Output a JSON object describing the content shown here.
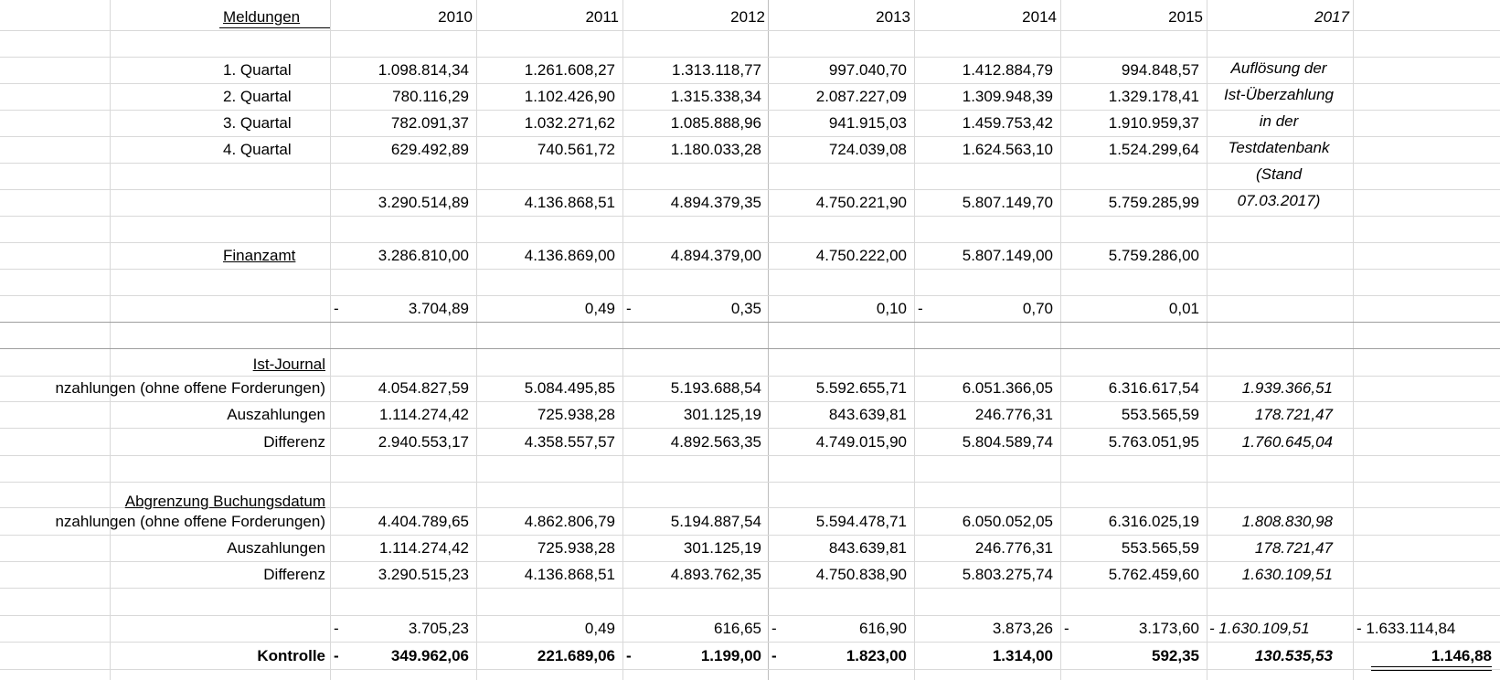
{
  "header": {
    "label": "Meldungen",
    "years": [
      "2010",
      "2011",
      "2012",
      "2013",
      "2014",
      "2015"
    ],
    "year_extra": "2017"
  },
  "quarters": [
    {
      "label": "1. Quartal",
      "values": [
        "1.098.814,34",
        "1.261.608,27",
        "1.313.118,77",
        "997.040,70",
        "1.412.884,79",
        "994.848,57"
      ]
    },
    {
      "label": "2. Quartal",
      "values": [
        "780.116,29",
        "1.102.426,90",
        "1.315.338,34",
        "2.087.227,09",
        "1.309.948,39",
        "1.329.178,41"
      ]
    },
    {
      "label": "3. Quartal",
      "values": [
        "782.091,37",
        "1.032.271,62",
        "1.085.888,96",
        "941.915,03",
        "1.459.753,42",
        "1.910.959,37"
      ]
    },
    {
      "label": "4. Quartal",
      "values": [
        "629.492,89",
        "740.561,72",
        "1.180.033,28",
        "724.039,08",
        "1.624.563,10",
        "1.524.299,64"
      ]
    }
  ],
  "note_lines": [
    "Auflösung der",
    "Ist-Überzahlung",
    "in der",
    "Testdatenbank",
    "(Stand",
    "07.03.2017)"
  ],
  "sum": [
    "3.290.514,89",
    "4.136.868,51",
    "4.894.379,35",
    "4.750.221,90",
    "5.807.149,70",
    "5.759.285,99"
  ],
  "finanzamt": {
    "label": "Finanzamt",
    "values": [
      "3.286.810,00",
      "4.136.869,00",
      "4.894.379,00",
      "4.750.222,00",
      "5.807.149,00",
      "5.759.286,00"
    ]
  },
  "diff1": {
    "values": [
      "3.704,89",
      "0,49",
      "0,35",
      "0,10",
      "0,70",
      "0,01"
    ],
    "neg": [
      "-",
      "",
      "-",
      "",
      "-",
      ""
    ]
  },
  "ist_journal": {
    "title": "Ist-Journal",
    "rows": [
      {
        "label": "nzahlungen (ohne offene Forderungen)",
        "values": [
          "4.054.827,59",
          "5.084.495,85",
          "5.193.688,54",
          "5.592.655,71",
          "6.051.366,05",
          "6.316.617,54"
        ],
        "extra": "1.939.366,51"
      },
      {
        "label": "Auszahlungen",
        "values": [
          "1.114.274,42",
          "725.938,28",
          "301.125,19",
          "843.639,81",
          "246.776,31",
          "553.565,59"
        ],
        "extra": "178.721,47"
      },
      {
        "label": "Differenz",
        "values": [
          "2.940.553,17",
          "4.358.557,57",
          "4.892.563,35",
          "4.749.015,90",
          "5.804.589,74",
          "5.763.051,95"
        ],
        "extra": "1.760.645,04"
      }
    ]
  },
  "abgrenzung": {
    "title": "Abgrenzung Buchungsdatum",
    "rows": [
      {
        "label": "nzahlungen (ohne offene Forderungen)",
        "values": [
          "4.404.789,65",
          "4.862.806,79",
          "5.194.887,54",
          "5.594.478,71",
          "6.050.052,05",
          "6.316.025,19"
        ],
        "extra": "1.808.830,98"
      },
      {
        "label": "Auszahlungen",
        "values": [
          "1.114.274,42",
          "725.938,28",
          "301.125,19",
          "843.639,81",
          "246.776,31",
          "553.565,59"
        ],
        "extra": "178.721,47"
      },
      {
        "label": "Differenz",
        "values": [
          "3.290.515,23",
          "4.136.868,51",
          "4.893.762,35",
          "4.750.838,90",
          "5.803.275,74",
          "5.762.459,60"
        ],
        "extra": "1.630.109,51"
      }
    ]
  },
  "diff2": {
    "values": [
      "3.705,23",
      "0,49",
      "616,65",
      "616,90",
      "3.873,26",
      "3.173,60"
    ],
    "neg": [
      "-",
      "",
      "",
      "-",
      "",
      "-"
    ],
    "extra": "- 1.630.109,51",
    "extra2": "- 1.633.114,84"
  },
  "kontrolle": {
    "label": "Kontrolle",
    "values": [
      "349.962,06",
      "221.689,06",
      "1.199,00",
      "1.823,00",
      "1.314,00",
      "592,35"
    ],
    "neg": [
      "-",
      "",
      "-",
      "-",
      "",
      ""
    ],
    "extra": "130.535,53",
    "extra2": "1.146,88"
  }
}
